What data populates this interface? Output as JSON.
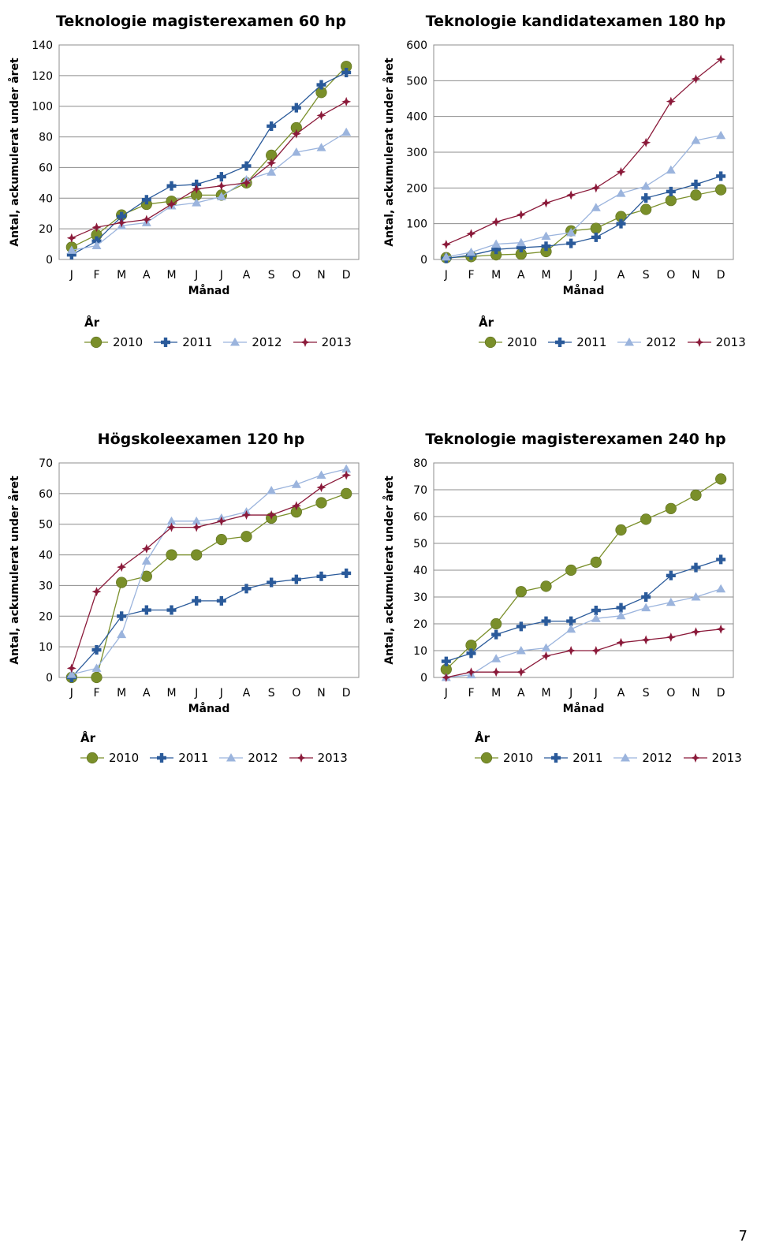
{
  "page_number": "7",
  "legend_title": "År",
  "series_colors": {
    "2010": "#7a8f2a",
    "2011": "#2a5a9a",
    "2012": "#9bb4dd",
    "2013": "#8b1a3a"
  },
  "series_markers": {
    "2010": "circle",
    "2011": "plus",
    "2012": "triangle",
    "2013": "star"
  },
  "chart_data": [
    {
      "type": "line",
      "title": "Teknologie magisterexamen 60 hp",
      "xlabel": "Månad",
      "ylabel": "Antal, ackumulerat under året",
      "categories": [
        "J",
        "F",
        "M",
        "A",
        "M",
        "J",
        "J",
        "A",
        "S",
        "O",
        "N",
        "D"
      ],
      "ylim": [
        0,
        140
      ],
      "yticks": [
        0,
        20,
        40,
        60,
        80,
        100,
        120,
        140
      ],
      "grid": true,
      "legend_position": "bottom",
      "series": [
        {
          "name": "2010",
          "values": [
            8,
            16,
            29,
            36,
            38,
            42,
            42,
            50,
            68,
            86,
            109,
            126
          ]
        },
        {
          "name": "2011",
          "values": [
            3,
            12,
            28,
            39,
            48,
            49,
            54,
            61,
            87,
            99,
            114,
            122
          ]
        },
        {
          "name": "2012",
          "values": [
            6,
            9,
            22,
            24,
            35,
            37,
            41,
            52,
            57,
            70,
            73,
            83
          ]
        },
        {
          "name": "2013",
          "values": [
            14,
            21,
            24,
            26,
            36,
            46,
            48,
            50,
            63,
            82,
            94,
            103
          ]
        }
      ]
    },
    {
      "type": "line",
      "title": "Teknologie kandidatexamen 180 hp",
      "xlabel": "Månad",
      "ylabel": "Antal, ackumulerat under året",
      "categories": [
        "J",
        "F",
        "M",
        "A",
        "M",
        "J",
        "J",
        "A",
        "S",
        "O",
        "N",
        "D"
      ],
      "ylim": [
        0,
        600
      ],
      "yticks": [
        0,
        100,
        200,
        300,
        400,
        500,
        600
      ],
      "grid": true,
      "legend_position": "bottom",
      "series": [
        {
          "name": "2010",
          "values": [
            5,
            8,
            13,
            15,
            22,
            80,
            87,
            120,
            140,
            165,
            180,
            195
          ]
        },
        {
          "name": "2011",
          "values": [
            3,
            12,
            28,
            33,
            37,
            45,
            62,
            100,
            172,
            190,
            210,
            233
          ]
        },
        {
          "name": "2012",
          "values": [
            7,
            20,
            43,
            47,
            65,
            75,
            145,
            185,
            205,
            250,
            333,
            347
          ]
        },
        {
          "name": "2013",
          "values": [
            42,
            72,
            105,
            125,
            158,
            180,
            200,
            245,
            327,
            442,
            505,
            560
          ]
        }
      ]
    },
    {
      "type": "line",
      "title": "Högskoleexamen 120 hp",
      "xlabel": "Månad",
      "ylabel": "Antal, ackumulerat under året",
      "categories": [
        "J",
        "F",
        "M",
        "A",
        "M",
        "J",
        "J",
        "A",
        "S",
        "O",
        "N",
        "D"
      ],
      "ylim": [
        0,
        70
      ],
      "yticks": [
        0,
        10,
        20,
        30,
        40,
        50,
        60,
        70
      ],
      "grid": true,
      "legend_position": "bottom",
      "series": [
        {
          "name": "2010",
          "values": [
            0,
            0,
            31,
            33,
            40,
            40,
            45,
            46,
            52,
            54,
            57,
            60
          ]
        },
        {
          "name": "2011",
          "values": [
            0,
            9,
            20,
            22,
            22,
            25,
            25,
            29,
            31,
            32,
            33,
            34
          ]
        },
        {
          "name": "2012",
          "values": [
            1,
            3,
            14,
            38,
            51,
            51,
            52,
            54,
            61,
            63,
            66,
            68
          ]
        },
        {
          "name": "2013",
          "values": [
            3,
            28,
            36,
            42,
            49,
            49,
            51,
            53,
            53,
            56,
            62,
            66
          ]
        }
      ]
    },
    {
      "type": "line",
      "title": "Teknologie magisterexamen 240 hp",
      "xlabel": "Månad",
      "ylabel": "Antal, ackumulerat under året",
      "categories": [
        "J",
        "F",
        "M",
        "A",
        "M",
        "J",
        "J",
        "A",
        "S",
        "O",
        "N",
        "D"
      ],
      "ylim": [
        0,
        80
      ],
      "yticks": [
        0,
        10,
        20,
        30,
        40,
        50,
        60,
        70,
        80
      ],
      "grid": true,
      "legend_position": "bottom",
      "series": [
        {
          "name": "2010",
          "values": [
            3,
            12,
            20,
            32,
            34,
            40,
            43,
            55,
            59,
            63,
            68,
            74
          ]
        },
        {
          "name": "2011",
          "values": [
            6,
            9,
            16,
            19,
            21,
            21,
            25,
            26,
            30,
            38,
            41,
            44
          ]
        },
        {
          "name": "2012",
          "values": [
            0,
            1,
            7,
            10,
            11,
            18,
            22,
            23,
            26,
            28,
            30,
            33
          ]
        },
        {
          "name": "2013",
          "values": [
            0,
            2,
            2,
            2,
            8,
            10,
            10,
            13,
            14,
            15,
            17,
            18
          ]
        }
      ]
    }
  ]
}
